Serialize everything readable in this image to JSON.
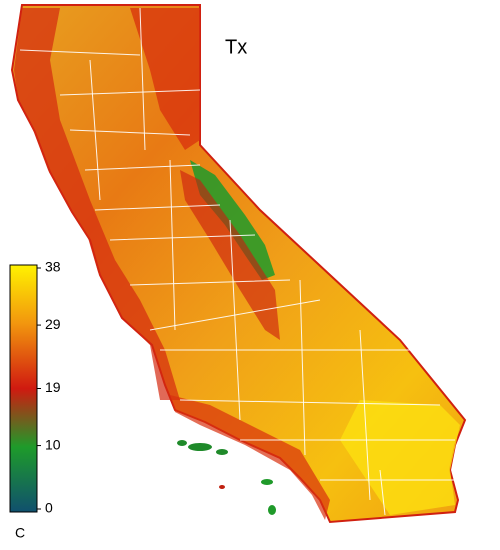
{
  "title": "Tx",
  "colorbar": {
    "range": [
      0,
      38
    ],
    "ticks": [
      0,
      10,
      19,
      29,
      38
    ],
    "colors": [
      "#10506e",
      "#1e9b2a",
      "#d01a10",
      "#f2960e",
      "#fff200"
    ],
    "unit": "C"
  }
}
